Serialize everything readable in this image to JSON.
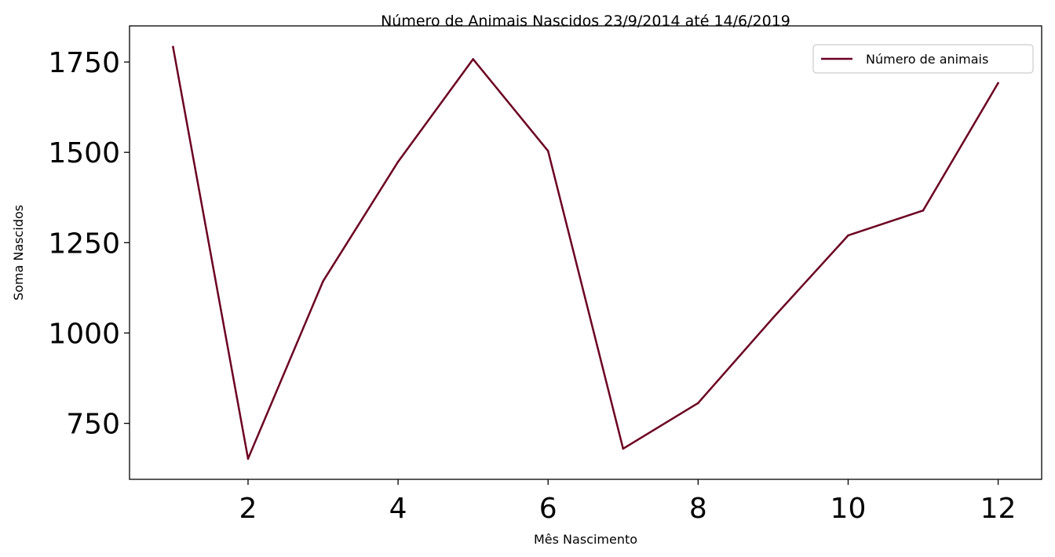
{
  "chart_data": {
    "type": "line",
    "title": "Número de Animais Nascidos 23/9/2014 até 14/6/2019",
    "xlabel": "Mês Nascimento",
    "ylabel": "Soma Nascidos",
    "xlim": [
      0.42,
      12.58
    ],
    "ylim": [
      595,
      1850
    ],
    "xticks": [
      2,
      4,
      6,
      8,
      10,
      12
    ],
    "yticks": [
      750,
      1000,
      1250,
      1500,
      1750
    ],
    "grid": false,
    "legend_position": "top-right",
    "series": [
      {
        "name": "Número de animais",
        "color": "#6b0022",
        "x": [
          1,
          2,
          3,
          4,
          5,
          6,
          7,
          8,
          9,
          10,
          11,
          12
        ],
        "y": [
          1792,
          652,
          1143,
          1474,
          1758,
          1504,
          680,
          806,
          1042,
          1270,
          1339,
          1692
        ]
      }
    ]
  }
}
